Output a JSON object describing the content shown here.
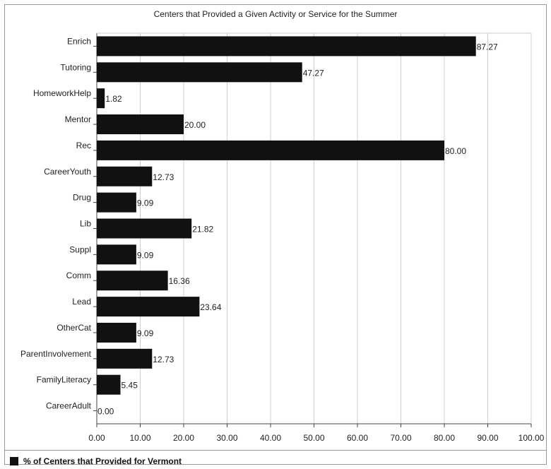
{
  "chart_data": {
    "type": "bar",
    "orientation": "horizontal",
    "title": "Centers that Provided a Given Activity or Service for the Summer",
    "categories": [
      "Enrich",
      "Tutoring",
      "HomeworkHelp",
      "Mentor",
      "Rec",
      "CareerYouth",
      "Drug",
      "Lib",
      "Suppl",
      "Comm",
      "Lead",
      "OtherCat",
      "ParentInvolvement",
      "FamilyLiteracy",
      "CareerAdult"
    ],
    "value_labels": [
      "87.27",
      "47.27",
      "1.82",
      "20.00",
      "80.00",
      "12.73",
      "9.09",
      "21.82",
      "9.09",
      "16.36",
      "23.64",
      "9.09",
      "12.73",
      "5.45",
      "0.00"
    ],
    "series": [
      {
        "name": "% of Centers that Provided for Vermont",
        "values": [
          87.27,
          47.27,
          1.82,
          20.0,
          80.0,
          12.73,
          9.09,
          21.82,
          9.09,
          16.36,
          23.64,
          9.09,
          12.73,
          5.45,
          0.0
        ]
      }
    ],
    "x_ticks": [
      "0.00",
      "10.00",
      "20.00",
      "30.00",
      "40.00",
      "50.00",
      "60.00",
      "70.00",
      "80.00",
      "90.00",
      "100.00"
    ],
    "xlim": [
      0,
      100
    ],
    "grid": true,
    "legend": "bottom-left",
    "bar_color": "#111111"
  }
}
